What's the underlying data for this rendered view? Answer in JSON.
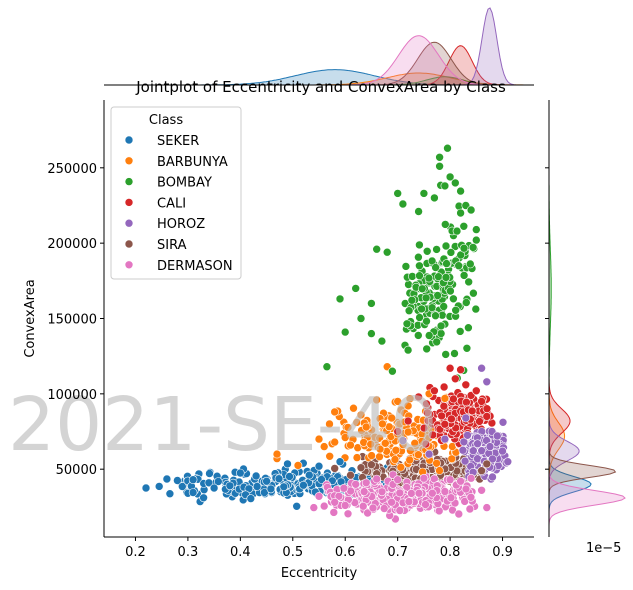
{
  "chart_data": {
    "type": "scatter",
    "title": "Jointplot of Eccentricity and ConvexArea by Class",
    "xlabel": "Eccentricity",
    "ylabel": "ConvexArea",
    "xlim": [
      0.14,
      0.96
    ],
    "ylim": [
      5000,
      295000
    ],
    "x_ticks": [
      0.2,
      0.3,
      0.4,
      0.5,
      0.6,
      0.7,
      0.8,
      0.9
    ],
    "y_ticks": [
      50000,
      100000,
      150000,
      200000,
      250000
    ],
    "y_marginal_offset_label": "1e−5",
    "watermark": "2021-SE-40",
    "legend": {
      "title": "Class",
      "location": "upper left"
    },
    "series": [
      {
        "name": "SEKER",
        "color": "#1f77b4",
        "cluster": {
          "x_range": [
            0.22,
            0.75
          ],
          "x_mode": 0.58,
          "y_center": 40000,
          "y_spread": 5000
        },
        "points": [
          [
            0.22,
            37500
          ],
          [
            0.26,
            43500
          ],
          [
            0.28,
            42500
          ],
          [
            0.3,
            34000
          ],
          [
            0.31,
            43000
          ],
          [
            0.31,
            34500
          ],
          [
            0.33,
            31000
          ],
          [
            0.34,
            41000
          ],
          [
            0.35,
            37500
          ],
          [
            0.38,
            39000
          ],
          [
            0.39,
            48000
          ],
          [
            0.4,
            47500
          ],
          [
            0.41,
            33000
          ],
          [
            0.42,
            30500
          ],
          [
            0.43,
            45500
          ],
          [
            0.45,
            42000
          ],
          [
            0.49,
            53500
          ],
          [
            0.52,
            54000
          ],
          [
            0.55,
            52000
          ],
          [
            0.59,
            55000
          ]
        ]
      },
      {
        "name": "BARBUNYA",
        "color": "#ff7f0e",
        "cluster": {
          "x_range": [
            0.55,
            0.87
          ],
          "x_mode": 0.73,
          "y_center": 72000,
          "y_spread": 9000
        },
        "points": [
          [
            0.47,
            57000
          ],
          [
            0.47,
            60000
          ],
          [
            0.51,
            52500
          ],
          [
            0.55,
            70000
          ],
          [
            0.56,
            65000
          ],
          [
            0.57,
            80000
          ],
          [
            0.58,
            68000
          ],
          [
            0.58,
            88000
          ],
          [
            0.6,
            71000
          ],
          [
            0.61,
            66000
          ],
          [
            0.63,
            86000
          ],
          [
            0.64,
            78000
          ],
          [
            0.66,
            96000
          ],
          [
            0.68,
            118000
          ],
          [
            0.7,
            95000
          ],
          [
            0.72,
            92000
          ],
          [
            0.76,
            100000
          ],
          [
            0.79,
            97000
          ]
        ]
      },
      {
        "name": "BOMBAY",
        "color": "#2ca02c",
        "cluster": {
          "x_range": [
            0.7,
            0.86
          ],
          "x_mode": 0.79,
          "y_center": 170000,
          "y_spread": 21000
        },
        "points": [
          [
            0.565,
            118000
          ],
          [
            0.59,
            163000
          ],
          [
            0.6,
            141000
          ],
          [
            0.62,
            170000
          ],
          [
            0.63,
            150000
          ],
          [
            0.65,
            160000
          ],
          [
            0.65,
            140000
          ],
          [
            0.66,
            196000
          ],
          [
            0.67,
            135000
          ],
          [
            0.68,
            194000
          ],
          [
            0.69,
            115000
          ],
          [
            0.7,
            233000
          ],
          [
            0.71,
            226000
          ],
          [
            0.72,
            129000
          ],
          [
            0.74,
            221000
          ],
          [
            0.75,
            233000
          ],
          [
            0.77,
            230000
          ],
          [
            0.78,
            257000
          ],
          [
            0.78,
            251000
          ],
          [
            0.79,
            238000
          ],
          [
            0.795,
            263000
          ],
          [
            0.8,
            244000
          ],
          [
            0.81,
            240000
          ],
          [
            0.82,
            220000
          ],
          [
            0.83,
            225000
          ],
          [
            0.84,
            222000
          ],
          [
            0.85,
            209000
          ],
          [
            0.85,
            202000
          ]
        ]
      },
      {
        "name": "CALI",
        "color": "#d62728",
        "cluster": {
          "x_range": [
            0.74,
            0.88
          ],
          "x_mode": 0.82,
          "y_center": 84000,
          "y_spread": 8000
        },
        "points": [
          [
            0.7,
            75000
          ],
          [
            0.72,
            82000
          ],
          [
            0.74,
            98000
          ],
          [
            0.77,
            102000
          ],
          [
            0.8,
            117000
          ],
          [
            0.81,
            110000
          ],
          [
            0.82,
            116000
          ],
          [
            0.83,
            106000
          ],
          [
            0.84,
            99000
          ],
          [
            0.85,
            102000
          ],
          [
            0.86,
            95000
          ],
          [
            0.87,
            85000
          ]
        ]
      },
      {
        "name": "HOROZ",
        "color": "#9467bd",
        "cluster": {
          "x_range": [
            0.82,
            0.91
          ],
          "x_mode": 0.87,
          "y_center": 62000,
          "y_spread": 7000
        },
        "points": [
          [
            0.71,
            69000
          ],
          [
            0.76,
            60000
          ],
          [
            0.79,
            70000
          ],
          [
            0.83,
            84000
          ],
          [
            0.86,
            117000
          ],
          [
            0.87,
            108000
          ],
          [
            0.88,
            75000
          ],
          [
            0.89,
            72000
          ],
          [
            0.9,
            62000
          ],
          [
            0.91,
            55000
          ]
        ]
      },
      {
        "name": "SIRA",
        "color": "#8c564b",
        "cluster": {
          "x_range": [
            0.62,
            0.87
          ],
          "x_mode": 0.77,
          "y_center": 50000,
          "y_spread": 4200
        },
        "points": [
          [
            0.58,
            50500
          ],
          [
            0.61,
            46000
          ],
          [
            0.63,
            51000
          ],
          [
            0.65,
            53000
          ],
          [
            0.66,
            47000
          ],
          [
            0.86,
            49000
          ],
          [
            0.87,
            53500
          ]
        ]
      },
      {
        "name": "DERMASON",
        "color": "#e377c2",
        "cluster": {
          "x_range": [
            0.55,
            0.86
          ],
          "x_mode": 0.74,
          "y_center": 32000,
          "y_spread": 5000
        },
        "points": [
          [
            0.54,
            24500
          ],
          [
            0.55,
            32000
          ],
          [
            0.56,
            25500
          ],
          [
            0.58,
            28000
          ],
          [
            0.6,
            26000
          ],
          [
            0.62,
            40000
          ],
          [
            0.64,
            41000
          ],
          [
            0.66,
            43500
          ],
          [
            0.7,
            43000
          ],
          [
            0.75,
            44000
          ],
          [
            0.8,
            43000
          ],
          [
            0.82,
            42000
          ],
          [
            0.84,
            44000
          ],
          [
            0.86,
            36000
          ],
          [
            0.87,
            24500
          ]
        ]
      }
    ]
  }
}
